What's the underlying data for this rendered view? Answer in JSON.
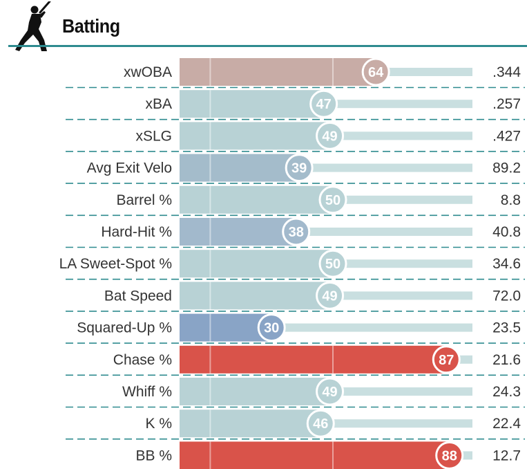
{
  "section": {
    "title": "Batting",
    "icon": "batter-silhouette-icon"
  },
  "colors": {
    "accent": "#2e8b8f",
    "track": "#c9dfe0",
    "scale": {
      "blue": "#8aa6c9",
      "neutral": "#b8d2d5",
      "red": "#d9534a"
    }
  },
  "chart_data": {
    "type": "bar",
    "title": "",
    "xlim": [
      0,
      100
    ],
    "categories": [
      "xwOBA",
      "xBA",
      "xSLG",
      "Avg Exit Velo",
      "Barrel %",
      "Hard-Hit %",
      "LA Sweet-Spot %",
      "Bat Speed",
      "Squared-Up %",
      "Chase %",
      "Whiff %",
      "K %",
      "BB %"
    ],
    "series": [
      {
        "values": [
          64,
          47,
          49,
          39,
          50,
          38,
          50,
          49,
          30,
          87,
          49,
          46,
          88
        ]
      }
    ],
    "stat_values": [
      ".344",
      ".257",
      ".427",
      "89.2",
      "8.8",
      "40.8",
      "34.6",
      "72.0",
      "23.5",
      "21.6",
      "24.3",
      "22.4",
      "12.7"
    ],
    "bar_colors": [
      "#c8aca6",
      "#b8d2d5",
      "#b8d2d5",
      "#a4bccb",
      "#b8d2d5",
      "#a2b9cc",
      "#b8d2d5",
      "#b8d2d5",
      "#89a4c6",
      "#d9534a",
      "#b8d2d5",
      "#b8d2d5",
      "#d9534a"
    ]
  }
}
